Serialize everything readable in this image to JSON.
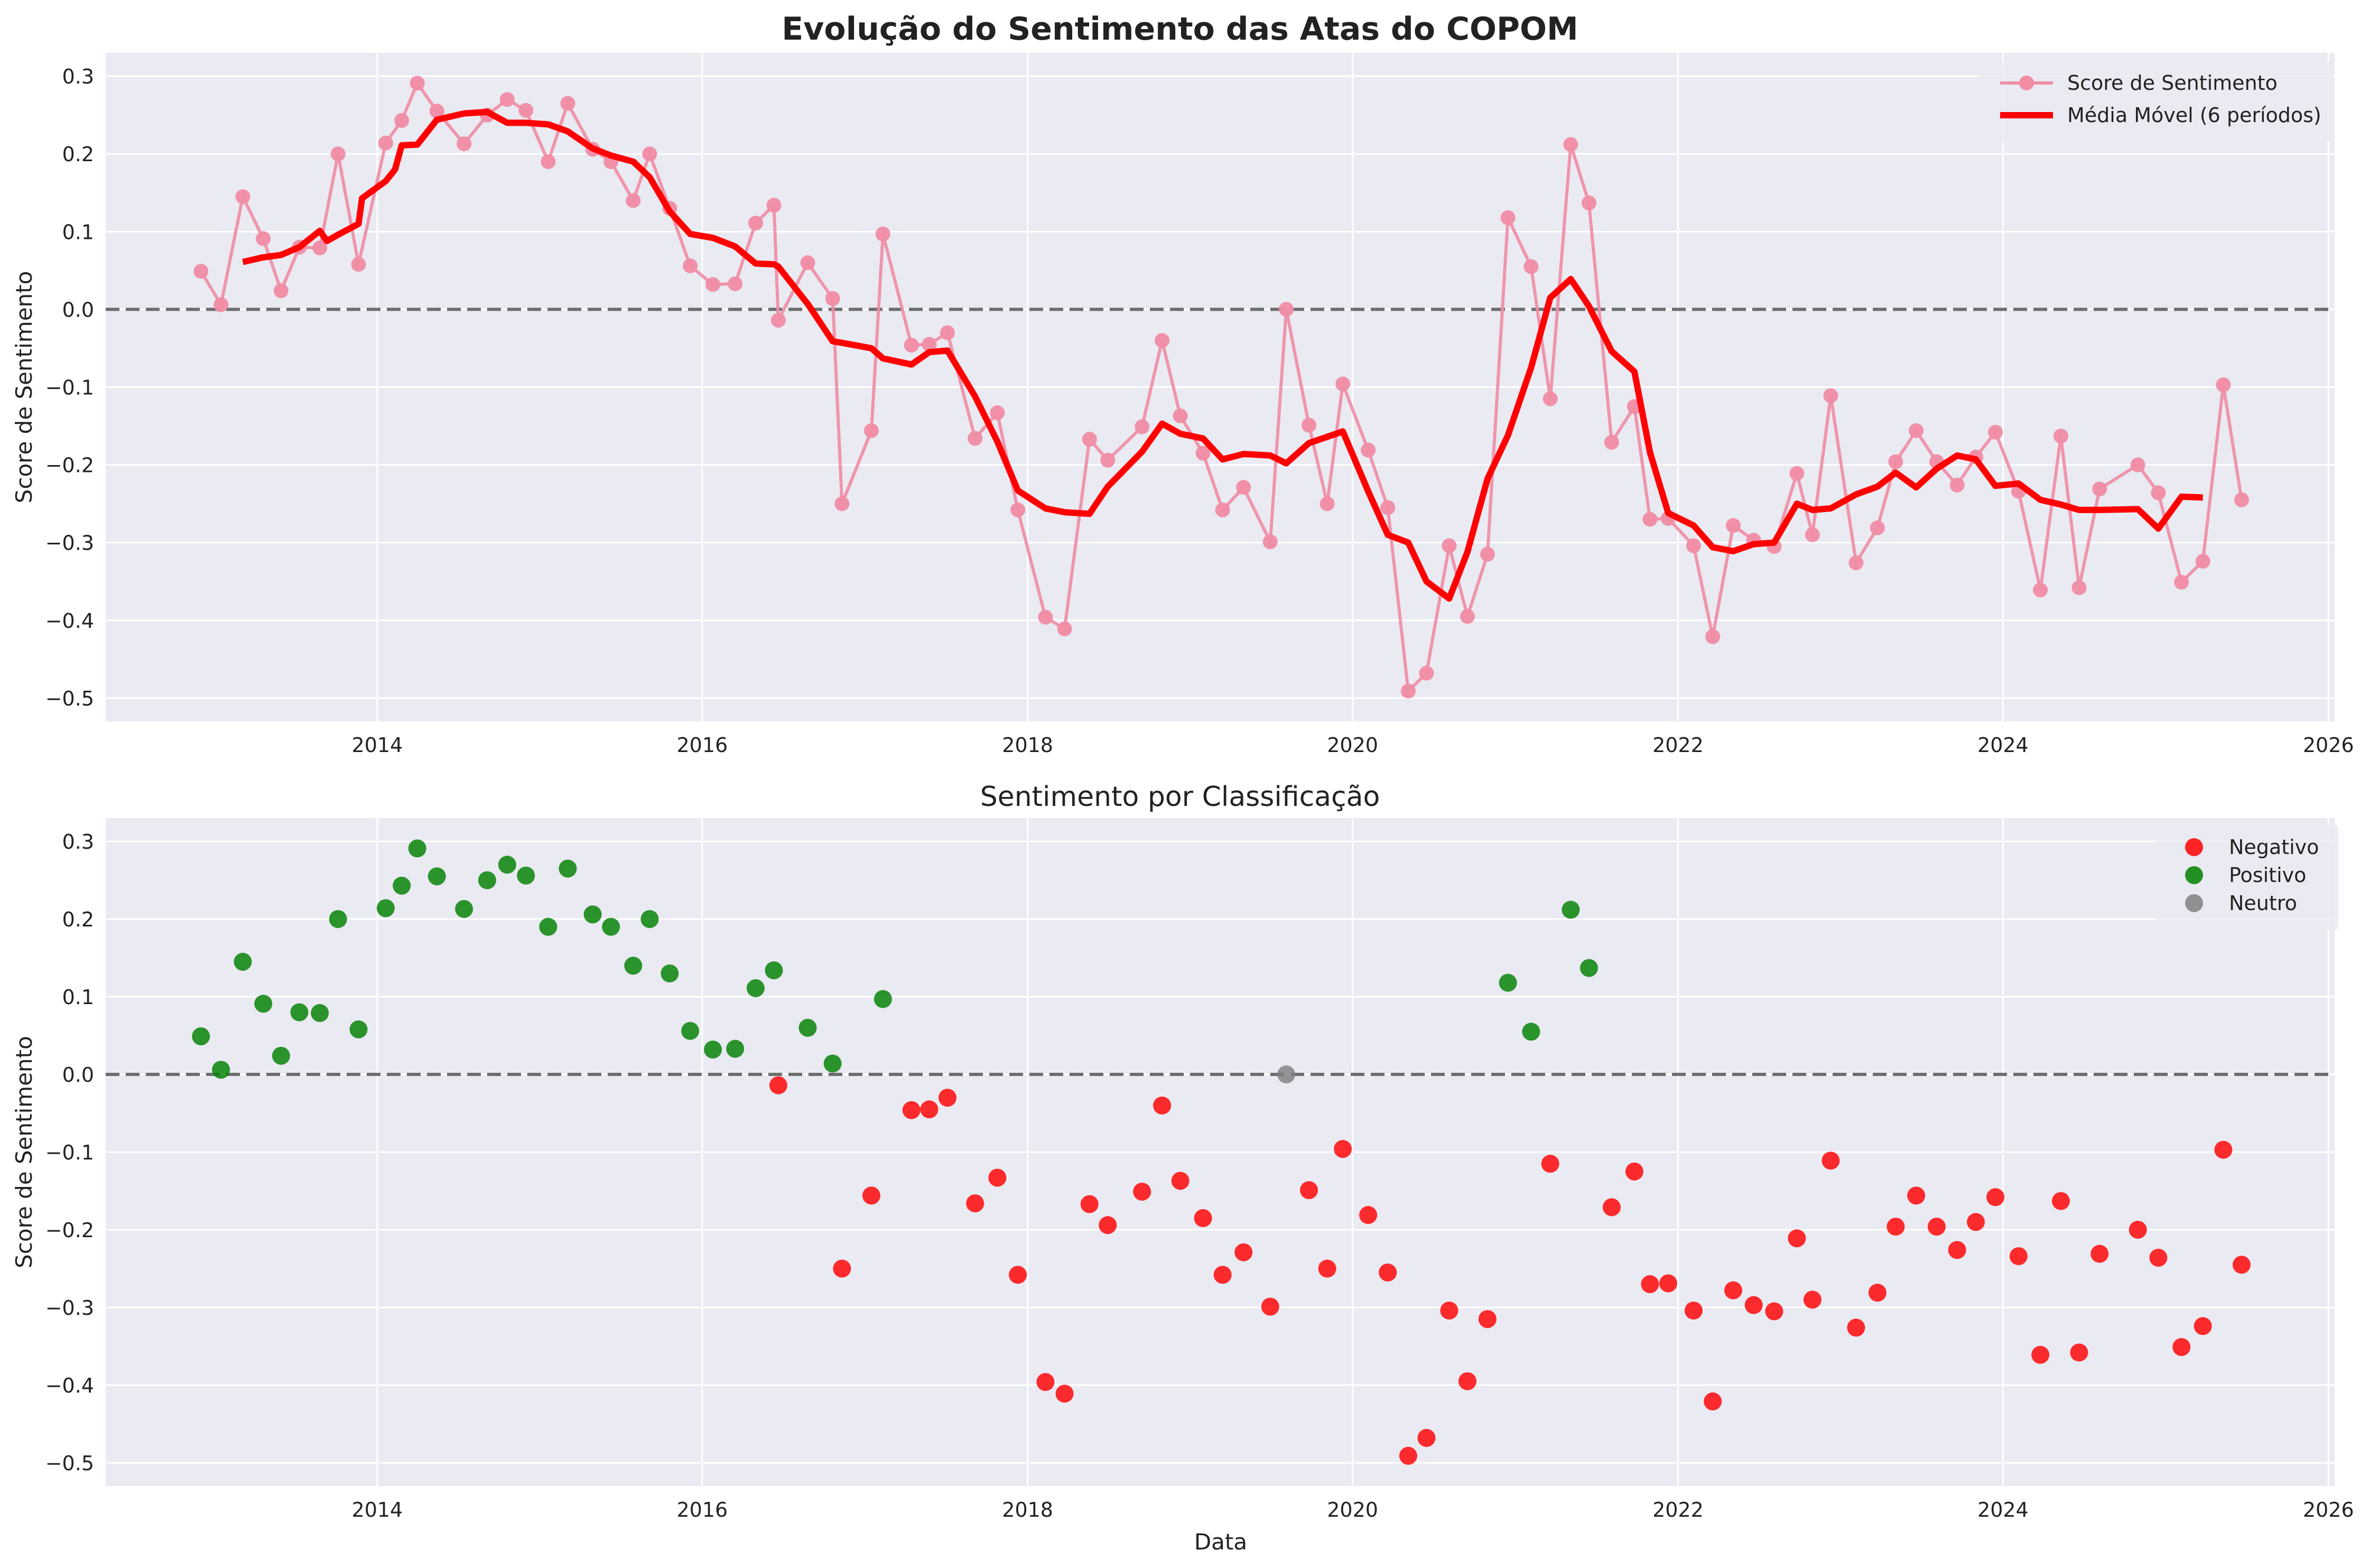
{
  "chart_data": [
    {
      "type": "line",
      "title": "Evolução do Sentimento das Atas do COPOM",
      "xlabel": "",
      "ylabel": "Score de Sentimento",
      "x_axis_type": "date",
      "xlim": [
        "2012-05-01",
        "2026-01-15"
      ],
      "ylim": [
        -0.53,
        0.33
      ],
      "xticks": [
        "2014",
        "2016",
        "2018",
        "2020",
        "2022",
        "2024",
        "2026"
      ],
      "yticks": [
        "0.3",
        "0.2",
        "0.1",
        "0.0",
        "−0.1",
        "−0.2",
        "−0.3",
        "−0.4",
        "−0.5"
      ],
      "grid": true,
      "reference_line": 0.0,
      "legend": {
        "position": "top-right",
        "items": [
          "Score de Sentimento",
          "Média Móvel (6 períodos)"
        ]
      },
      "colors": {
        "score": "#f08ca4",
        "moving_average": "#ff0000",
        "reference": "#555555",
        "background": "#eaeaf2",
        "grid": "#ffffff"
      },
      "series": [
        {
          "name": "Score de Sentimento",
          "style": "line-markers",
          "points": [
            [
              "2012-12-01",
              0.049
            ],
            [
              "2013-01-15",
              0.006
            ],
            [
              "2013-03-05",
              0.145
            ],
            [
              "2013-04-20",
              0.091
            ],
            [
              "2013-05-30",
              0.024
            ],
            [
              "2013-07-10",
              0.08
            ],
            [
              "2013-08-25",
              0.079
            ],
            [
              "2013-10-05",
              0.2
            ],
            [
              "2013-11-20",
              0.058
            ],
            [
              "2014-01-20",
              0.214
            ],
            [
              "2014-02-25",
              0.243
            ],
            [
              "2014-04-01",
              0.291
            ],
            [
              "2014-05-15",
              0.255
            ],
            [
              "2014-07-15",
              0.213
            ],
            [
              "2014-09-05",
              0.25
            ],
            [
              "2014-10-20",
              0.27
            ],
            [
              "2014-12-01",
              0.256
            ],
            [
              "2015-01-20",
              0.19
            ],
            [
              "2015-03-05",
              0.265
            ],
            [
              "2015-04-30",
              0.206
            ],
            [
              "2015-06-10",
              0.19
            ],
            [
              "2015-07-30",
              0.14
            ],
            [
              "2015-09-05",
              0.2
            ],
            [
              "2015-10-20",
              0.13
            ],
            [
              "2015-12-05",
              0.056
            ],
            [
              "2016-01-25",
              0.032
            ],
            [
              "2016-03-15",
              0.033
            ],
            [
              "2016-04-30",
              0.111
            ],
            [
              "2016-06-10",
              0.134
            ],
            [
              "2016-06-20",
              -0.014
            ],
            [
              "2016-08-25",
              0.06
            ],
            [
              "2016-10-20",
              0.014
            ],
            [
              "2016-11-10",
              -0.25
            ],
            [
              "2017-01-15",
              -0.156
            ],
            [
              "2017-02-10",
              0.097
            ],
            [
              "2017-04-15",
              -0.046
            ],
            [
              "2017-05-25",
              -0.045
            ],
            [
              "2017-07-05",
              -0.03
            ],
            [
              "2017-09-05",
              -0.166
            ],
            [
              "2017-10-25",
              -0.133
            ],
            [
              "2017-12-10",
              -0.258
            ],
            [
              "2018-02-10",
              -0.396
            ],
            [
              "2018-03-25",
              -0.411
            ],
            [
              "2018-05-20",
              -0.167
            ],
            [
              "2018-06-30",
              -0.194
            ],
            [
              "2018-09-15",
              -0.151
            ],
            [
              "2018-10-30",
              -0.04
            ],
            [
              "2018-12-10",
              -0.137
            ],
            [
              "2019-01-30",
              -0.185
            ],
            [
              "2019-03-15",
              -0.258
            ],
            [
              "2019-05-01",
              -0.229
            ],
            [
              "2019-06-30",
              -0.299
            ],
            [
              "2019-08-05",
              0.0
            ],
            [
              "2019-09-25",
              -0.149
            ],
            [
              "2019-11-05",
              -0.25
            ],
            [
              "2019-12-10",
              -0.096
            ],
            [
              "2020-02-05",
              -0.181
            ],
            [
              "2020-03-20",
              -0.255
            ],
            [
              "2020-05-05",
              -0.491
            ],
            [
              "2020-06-15",
              -0.468
            ],
            [
              "2020-08-05",
              -0.304
            ],
            [
              "2020-09-15",
              -0.395
            ],
            [
              "2020-10-30",
              -0.315
            ],
            [
              "2020-12-15",
              0.118
            ],
            [
              "2021-02-05",
              0.055
            ],
            [
              "2021-03-20",
              -0.115
            ],
            [
              "2021-05-05",
              0.212
            ],
            [
              "2021-06-15",
              0.137
            ],
            [
              "2021-08-05",
              -0.171
            ],
            [
              "2021-09-25",
              -0.125
            ],
            [
              "2021-10-30",
              -0.27
            ],
            [
              "2021-12-10",
              -0.269
            ],
            [
              "2022-02-05",
              -0.304
            ],
            [
              "2022-03-20",
              -0.421
            ],
            [
              "2022-05-05",
              -0.278
            ],
            [
              "2022-06-20",
              -0.297
            ],
            [
              "2022-08-05",
              -0.305
            ],
            [
              "2022-09-25",
              -0.211
            ],
            [
              "2022-10-30",
              -0.29
            ],
            [
              "2022-12-10",
              -0.111
            ],
            [
              "2023-02-05",
              -0.326
            ],
            [
              "2023-03-25",
              -0.281
            ],
            [
              "2023-05-05",
              -0.196
            ],
            [
              "2023-06-20",
              -0.156
            ],
            [
              "2023-08-05",
              -0.196
            ],
            [
              "2023-09-20",
              -0.226
            ],
            [
              "2023-11-01",
              -0.19
            ],
            [
              "2023-12-15",
              -0.158
            ],
            [
              "2024-02-05",
              -0.234
            ],
            [
              "2024-03-25",
              -0.361
            ],
            [
              "2024-05-10",
              -0.163
            ],
            [
              "2024-06-20",
              -0.358
            ],
            [
              "2024-08-05",
              -0.231
            ],
            [
              "2024-10-30",
              -0.2
            ],
            [
              "2024-12-15",
              -0.236
            ],
            [
              "2025-02-05",
              -0.351
            ],
            [
              "2025-03-25",
              -0.324
            ],
            [
              "2025-05-10",
              -0.097
            ],
            [
              "2025-06-20",
              -0.245
            ]
          ]
        },
        {
          "name": "Média Móvel (6 períodos)",
          "style": "thick-line",
          "points": [
            [
              "2013-03-05",
              0.061
            ],
            [
              "2013-04-20",
              0.067
            ],
            [
              "2013-05-30",
              0.07
            ],
            [
              "2013-07-10",
              0.08
            ],
            [
              "2013-08-25",
              0.101
            ],
            [
              "2013-09-10",
              0.088
            ],
            [
              "2013-10-05",
              0.096
            ],
            [
              "2013-11-20",
              0.11
            ],
            [
              "2013-11-28",
              0.143
            ],
            [
              "2014-01-20",
              0.165
            ],
            [
              "2014-02-10",
              0.18
            ],
            [
              "2014-02-25",
              0.211
            ],
            [
              "2014-04-01",
              0.212
            ],
            [
              "2014-05-15",
              0.244
            ],
            [
              "2014-07-15",
              0.252
            ],
            [
              "2014-09-05",
              0.254
            ],
            [
              "2014-10-20",
              0.24
            ],
            [
              "2014-12-01",
              0.24
            ],
            [
              "2015-01-20",
              0.238
            ],
            [
              "2015-03-05",
              0.229
            ],
            [
              "2015-04-30",
              0.207
            ],
            [
              "2015-06-10",
              0.198
            ],
            [
              "2015-07-30",
              0.19
            ],
            [
              "2015-09-05",
              0.17
            ],
            [
              "2015-10-20",
              0.126
            ],
            [
              "2015-12-05",
              0.097
            ],
            [
              "2016-01-25",
              0.092
            ],
            [
              "2016-03-15",
              0.081
            ],
            [
              "2016-04-30",
              0.059
            ],
            [
              "2016-06-10",
              0.058
            ],
            [
              "2016-06-20",
              0.055
            ],
            [
              "2016-08-25",
              0.007
            ],
            [
              "2016-10-20",
              -0.041
            ],
            [
              "2016-11-10",
              -0.043
            ],
            [
              "2017-01-15",
              -0.05
            ],
            [
              "2017-02-10",
              -0.063
            ],
            [
              "2017-04-15",
              -0.071
            ],
            [
              "2017-05-25",
              -0.055
            ],
            [
              "2017-07-05",
              -0.053
            ],
            [
              "2017-09-05",
              -0.112
            ],
            [
              "2017-10-25",
              -0.17
            ],
            [
              "2017-12-10",
              -0.233
            ],
            [
              "2018-02-10",
              -0.256
            ],
            [
              "2018-03-25",
              -0.261
            ],
            [
              "2018-05-20",
              -0.263
            ],
            [
              "2018-06-30",
              -0.228
            ],
            [
              "2018-09-15",
              -0.183
            ],
            [
              "2018-10-30",
              -0.147
            ],
            [
              "2018-12-10",
              -0.16
            ],
            [
              "2019-01-30",
              -0.166
            ],
            [
              "2019-03-15",
              -0.193
            ],
            [
              "2019-05-01",
              -0.186
            ],
            [
              "2019-06-30",
              -0.188
            ],
            [
              "2019-08-05",
              -0.198
            ],
            [
              "2019-09-25",
              -0.172
            ],
            [
              "2019-11-05",
              -0.164
            ],
            [
              "2019-12-10",
              -0.157
            ],
            [
              "2020-02-05",
              -0.234
            ],
            [
              "2020-03-20",
              -0.29
            ],
            [
              "2020-05-05",
              -0.3
            ],
            [
              "2020-06-15",
              -0.35
            ],
            [
              "2020-08-05",
              -0.372
            ],
            [
              "2020-09-15",
              -0.312
            ],
            [
              "2020-10-30",
              -0.218
            ],
            [
              "2020-12-15",
              -0.162
            ],
            [
              "2021-02-05",
              -0.075
            ],
            [
              "2021-03-20",
              0.015
            ],
            [
              "2021-05-05",
              0.039
            ],
            [
              "2021-06-15",
              0.004
            ],
            [
              "2021-08-05",
              -0.054
            ],
            [
              "2021-09-25",
              -0.08
            ],
            [
              "2021-10-30",
              -0.184
            ],
            [
              "2021-12-10",
              -0.262
            ],
            [
              "2022-02-05",
              -0.278
            ],
            [
              "2022-03-20",
              -0.306
            ],
            [
              "2022-05-05",
              -0.311
            ],
            [
              "2022-06-20",
              -0.302
            ],
            [
              "2022-08-05",
              -0.3
            ],
            [
              "2022-09-25",
              -0.25
            ],
            [
              "2022-10-30",
              -0.258
            ],
            [
              "2022-12-10",
              -0.256
            ],
            [
              "2023-02-05",
              -0.238
            ],
            [
              "2023-03-25",
              -0.228
            ],
            [
              "2023-05-05",
              -0.21
            ],
            [
              "2023-06-20",
              -0.229
            ],
            [
              "2023-08-05",
              -0.205
            ],
            [
              "2023-09-20",
              -0.188
            ],
            [
              "2023-11-01",
              -0.193
            ],
            [
              "2023-12-15",
              -0.227
            ],
            [
              "2024-02-05",
              -0.224
            ],
            [
              "2024-03-25",
              -0.245
            ],
            [
              "2024-05-10",
              -0.251
            ],
            [
              "2024-06-20",
              -0.258
            ],
            [
              "2024-08-05",
              -0.258
            ],
            [
              "2024-10-30",
              -0.257
            ],
            [
              "2024-12-15",
              -0.282
            ],
            [
              "2025-02-05",
              -0.241
            ],
            [
              "2025-03-25",
              -0.242
            ]
          ]
        }
      ]
    },
    {
      "type": "scatter",
      "title": "Sentimento por Classificação",
      "xlabel": "Data",
      "ylabel": "Score de Sentimento",
      "x_axis_type": "date",
      "xlim": [
        "2012-05-01",
        "2026-01-15"
      ],
      "ylim": [
        -0.53,
        0.33
      ],
      "xticks": [
        "2014",
        "2016",
        "2018",
        "2020",
        "2022",
        "2024",
        "2026"
      ],
      "yticks": [
        "0.3",
        "0.2",
        "0.1",
        "0.0",
        "−0.1",
        "−0.2",
        "−0.3",
        "−0.4",
        "−0.5"
      ],
      "grid": true,
      "reference_line": 0.0,
      "legend": {
        "position": "top-right",
        "items": [
          "Negativo",
          "Positivo",
          "Neutro"
        ]
      },
      "colors": {
        "Negativo": "#ff0000",
        "Positivo": "#008000",
        "Neutro": "#808080",
        "reference": "#555555"
      },
      "classification_rule": "Positivo if score > 0, Neutro if score = 0, Negativo if score < 0",
      "series": [
        {
          "name": "Negativo",
          "source": "Score de Sentimento",
          "condition": "negative"
        },
        {
          "name": "Positivo",
          "source": "Score de Sentimento",
          "condition": "positive"
        },
        {
          "name": "Neutro",
          "source": "Score de Sentimento",
          "condition": "zero"
        }
      ]
    }
  ]
}
